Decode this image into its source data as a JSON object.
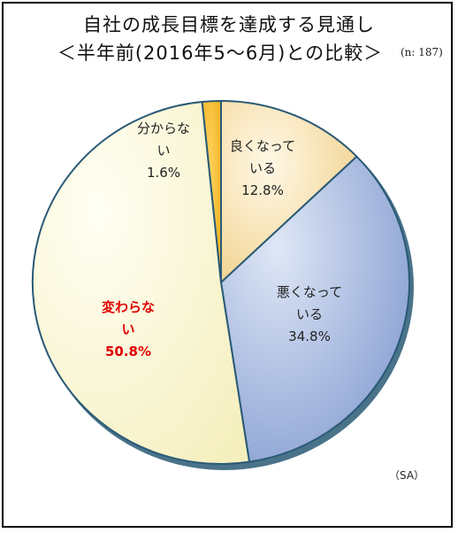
{
  "chart_data": {
    "type": "pie",
    "title": "自社の成長目標を達成する見通し",
    "subtitle": "＜半年前(2016年5～6月)との比較＞",
    "sample_size": "(n: 187)",
    "note": "（SA）",
    "slices": [
      {
        "label_line1": "良くなって",
        "label_line2": "いる",
        "value": 12.8,
        "value_label": "12.8%",
        "color": "#f3d596"
      },
      {
        "label_line1": "悪くなって",
        "label_line2": "いる",
        "value": 34.8,
        "value_label": "34.8%",
        "color": "#8fa6d6"
      },
      {
        "label_line1": "変わらな",
        "label_line2": "い",
        "value": 50.8,
        "value_label": "50.8%",
        "color": "#faf6cf",
        "highlight": true
      },
      {
        "label_line1": "分からな",
        "label_line2": "い",
        "value": 1.6,
        "value_label": "1.6%",
        "color": "#f1b72a"
      }
    ]
  }
}
